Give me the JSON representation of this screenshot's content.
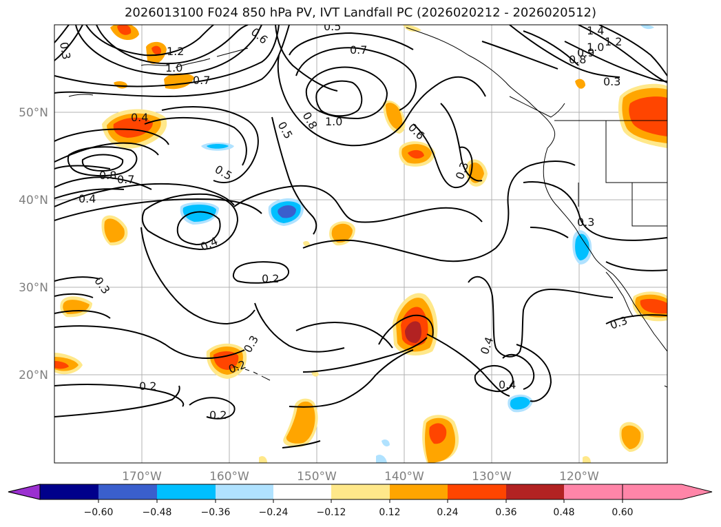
{
  "title": "2026013100 F024 850 hPa PV, IVT Landfall PC (2026020212 - 2026020512)",
  "map": {
    "lon_labels": [
      "170°W",
      "160°W",
      "150°W",
      "140°W",
      "130°W",
      "120°W"
    ],
    "lat_labels": [
      "50°N",
      "40°N",
      "30°N",
      "20°N"
    ],
    "contour_labels": [
      "0.3",
      "1.2",
      "1.0",
      "0.7",
      "0.5",
      "0.7",
      "0.6",
      "1.4",
      "1.2",
      "1.0",
      "0.9",
      "0.8",
      "0.3",
      "0.4",
      "0.8",
      "0.7",
      "1.0",
      "0.5",
      "0.8",
      "0.6",
      "0.3",
      "0.5",
      "0.4",
      "0.4",
      "0.3",
      "0.3",
      "0.2",
      "0.3",
      "0.2",
      "0.4",
      "0.4",
      "0.3",
      "0.2",
      "0.2"
    ]
  },
  "colorbar": {
    "colors": [
      "#9b30d0",
      "#00008b",
      "#3a5fcd",
      "#00bfff",
      "#b0e2ff",
      "#ffffff",
      "#ffe88a",
      "#ffa500",
      "#ff4500",
      "#b22222",
      "#ff85a8"
    ],
    "ticks": [
      "−0.60",
      "−0.48",
      "−0.36",
      "−0.24",
      "−0.12",
      "0.12",
      "0.24",
      "0.36",
      "0.48",
      "0.60"
    ]
  }
}
